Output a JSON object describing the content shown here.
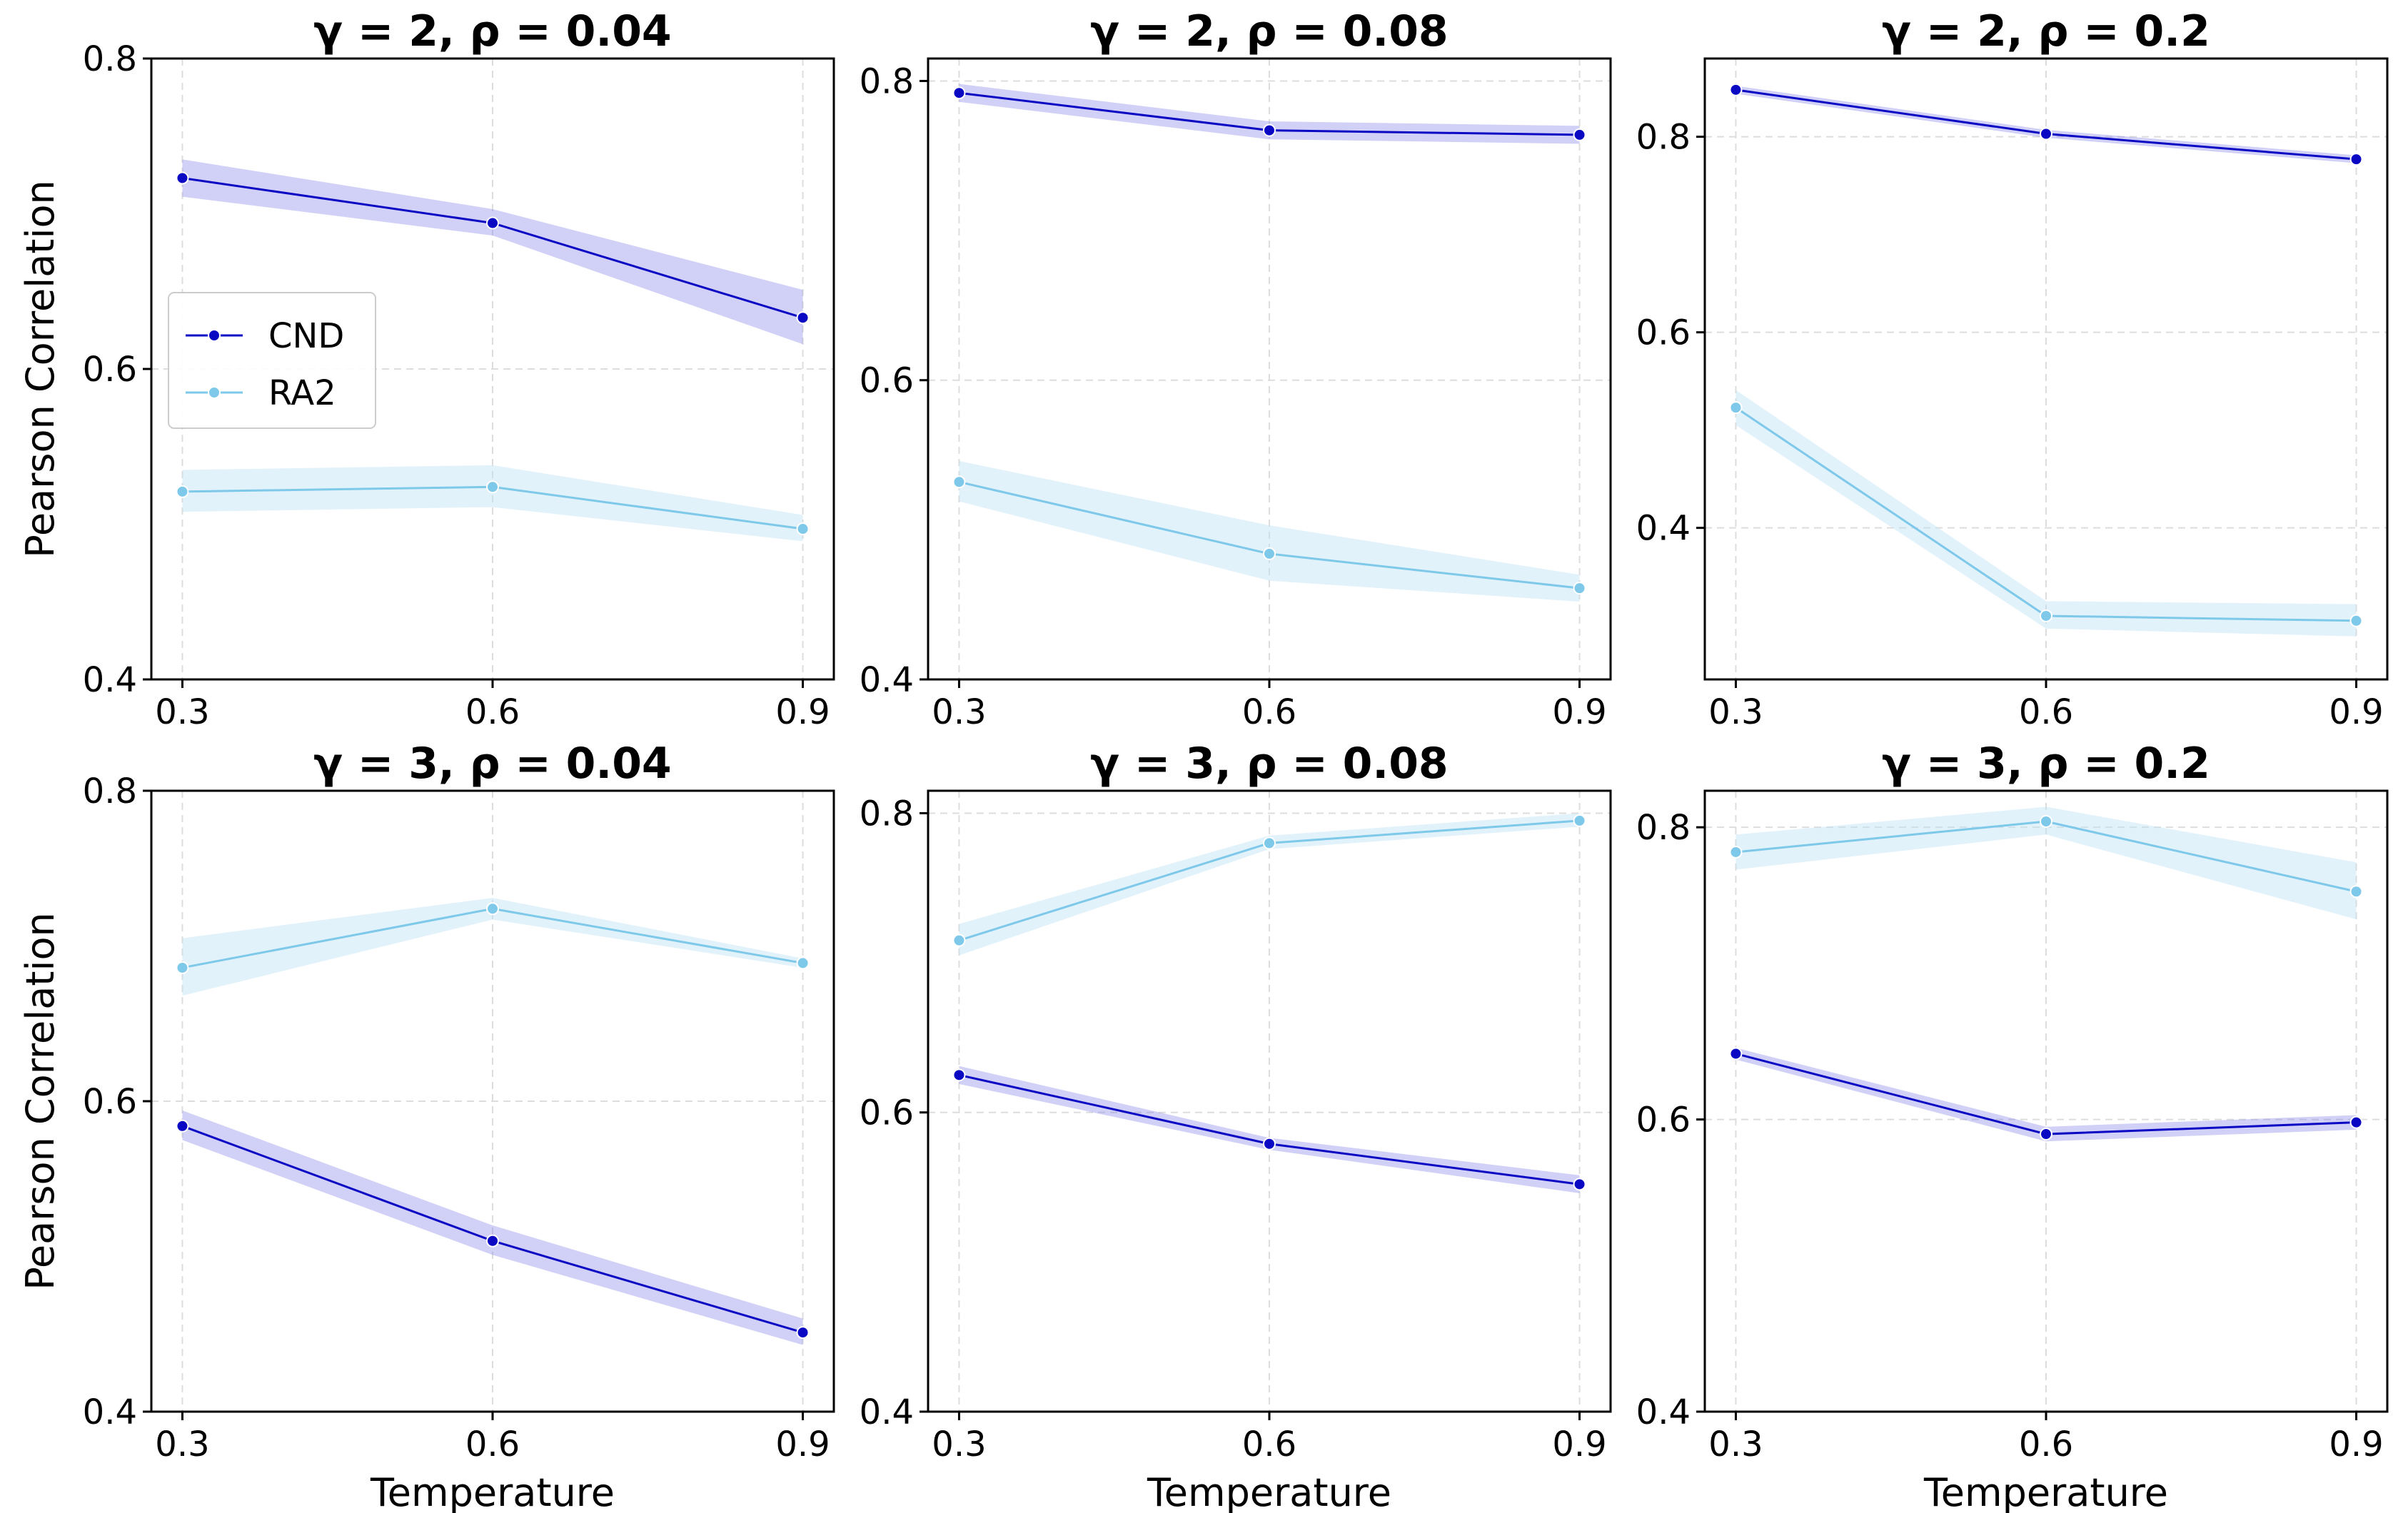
{
  "colors": {
    "CND_line": "#0b08c4",
    "CND_band": "#7b79e6",
    "RA2_line": "#7ec8ea",
    "RA2_band": "#bfe3f6"
  },
  "legend": {
    "items": [
      "CND",
      "RA2"
    ],
    "placement": "center-left of first panel"
  },
  "chart_data": [
    {
      "type": "line",
      "title": "γ = 2, ρ = 0.04",
      "xlabel": "",
      "ylabel": "Pearson Correlation",
      "x": [
        0.3,
        0.6,
        0.9
      ],
      "x_tick_labels": [
        "0.3",
        "0.6",
        "0.9"
      ],
      "xlim": [
        0.27,
        0.93
      ],
      "ylim": [
        0.4,
        0.8
      ],
      "y_ticks": [
        0.4,
        0.6,
        0.8
      ],
      "y_tick_labels": [
        "0.4",
        "0.6",
        "0.8"
      ],
      "grid": true,
      "series": [
        {
          "name": "CND",
          "values": [
            0.723,
            0.694,
            0.633
          ],
          "lower": [
            0.711,
            0.686,
            0.616
          ],
          "upper": [
            0.735,
            0.703,
            0.651
          ]
        },
        {
          "name": "RA2",
          "values": [
            0.521,
            0.524,
            0.497
          ],
          "lower": [
            0.508,
            0.511,
            0.489
          ],
          "upper": [
            0.535,
            0.538,
            0.506
          ]
        }
      ]
    },
    {
      "type": "line",
      "title": "γ = 2, ρ = 0.08",
      "xlabel": "",
      "ylabel": "",
      "x": [
        0.3,
        0.6,
        0.9
      ],
      "x_tick_labels": [
        "0.3",
        "0.6",
        "0.9"
      ],
      "xlim": [
        0.27,
        0.93
      ],
      "ylim": [
        0.4,
        0.815
      ],
      "y_ticks": [
        0.4,
        0.6,
        0.8
      ],
      "y_tick_labels": [
        "0.4",
        "0.6",
        "0.8"
      ],
      "grid": true,
      "series": [
        {
          "name": "CND",
          "values": [
            0.792,
            0.767,
            0.764
          ],
          "lower": [
            0.786,
            0.761,
            0.758
          ],
          "upper": [
            0.798,
            0.773,
            0.77
          ]
        },
        {
          "name": "RA2",
          "values": [
            0.532,
            0.484,
            0.461
          ],
          "lower": [
            0.519,
            0.466,
            0.452
          ],
          "upper": [
            0.546,
            0.503,
            0.47
          ]
        }
      ]
    },
    {
      "type": "line",
      "title": "γ = 2, ρ = 0.2",
      "xlabel": "",
      "ylabel": "",
      "x": [
        0.3,
        0.6,
        0.9
      ],
      "x_tick_labels": [
        "0.3",
        "0.6",
        "0.9"
      ],
      "xlim": [
        0.27,
        0.93
      ],
      "ylim": [
        0.245,
        0.88
      ],
      "y_ticks": [
        0.4,
        0.6,
        0.8
      ],
      "y_tick_labels": [
        "0.4",
        "0.6",
        "0.8"
      ],
      "grid": true,
      "series": [
        {
          "name": "CND",
          "values": [
            0.848,
            0.803,
            0.777
          ],
          "lower": [
            0.844,
            0.799,
            0.773
          ],
          "upper": [
            0.852,
            0.807,
            0.781
          ]
        },
        {
          "name": "RA2",
          "values": [
            0.523,
            0.31,
            0.305
          ],
          "lower": [
            0.505,
            0.297,
            0.289
          ],
          "upper": [
            0.541,
            0.325,
            0.322
          ]
        }
      ]
    },
    {
      "type": "line",
      "title": "γ = 3, ρ = 0.04",
      "xlabel": "Temperature",
      "ylabel": "Pearson Correlation",
      "x": [
        0.3,
        0.6,
        0.9
      ],
      "x_tick_labels": [
        "0.3",
        "0.6",
        "0.9"
      ],
      "xlim": [
        0.27,
        0.93
      ],
      "ylim": [
        0.4,
        0.8
      ],
      "y_ticks": [
        0.4,
        0.6,
        0.8
      ],
      "y_tick_labels": [
        "0.4",
        "0.6",
        "0.8"
      ],
      "grid": true,
      "series": [
        {
          "name": "CND",
          "values": [
            0.584,
            0.51,
            0.451
          ],
          "lower": [
            0.575,
            0.501,
            0.443
          ],
          "upper": [
            0.594,
            0.52,
            0.46
          ]
        },
        {
          "name": "RA2",
          "values": [
            0.686,
            0.724,
            0.689
          ],
          "lower": [
            0.668,
            0.717,
            0.686
          ],
          "upper": [
            0.705,
            0.731,
            0.692
          ]
        }
      ]
    },
    {
      "type": "line",
      "title": "γ = 3, ρ = 0.08",
      "xlabel": "Temperature",
      "ylabel": "",
      "x": [
        0.3,
        0.6,
        0.9
      ],
      "x_tick_labels": [
        "0.3",
        "0.6",
        "0.9"
      ],
      "xlim": [
        0.27,
        0.93
      ],
      "ylim": [
        0.4,
        0.815
      ],
      "y_ticks": [
        0.4,
        0.6,
        0.8
      ],
      "y_tick_labels": [
        "0.4",
        "0.6",
        "0.8"
      ],
      "grid": true,
      "series": [
        {
          "name": "CND",
          "values": [
            0.625,
            0.579,
            0.552
          ],
          "lower": [
            0.619,
            0.575,
            0.546
          ],
          "upper": [
            0.631,
            0.583,
            0.558
          ]
        },
        {
          "name": "RA2",
          "values": [
            0.715,
            0.78,
            0.795
          ],
          "lower": [
            0.705,
            0.776,
            0.791
          ],
          "upper": [
            0.726,
            0.785,
            0.8
          ]
        }
      ]
    },
    {
      "type": "line",
      "title": "γ = 3, ρ = 0.2",
      "xlabel": "Temperature",
      "ylabel": "",
      "x": [
        0.3,
        0.6,
        0.9
      ],
      "x_tick_labels": [
        "0.3",
        "0.6",
        "0.9"
      ],
      "xlim": [
        0.27,
        0.93
      ],
      "ylim": [
        0.4,
        0.825
      ],
      "y_ticks": [
        0.4,
        0.6,
        0.8
      ],
      "y_tick_labels": [
        "0.4",
        "0.6",
        "0.8"
      ],
      "grid": true,
      "series": [
        {
          "name": "CND",
          "values": [
            0.645,
            0.59,
            0.598
          ],
          "lower": [
            0.641,
            0.585,
            0.593
          ],
          "upper": [
            0.649,
            0.595,
            0.603
          ]
        },
        {
          "name": "RA2",
          "values": [
            0.783,
            0.804,
            0.756
          ],
          "lower": [
            0.771,
            0.795,
            0.737
          ],
          "upper": [
            0.795,
            0.814,
            0.776
          ]
        }
      ]
    }
  ]
}
